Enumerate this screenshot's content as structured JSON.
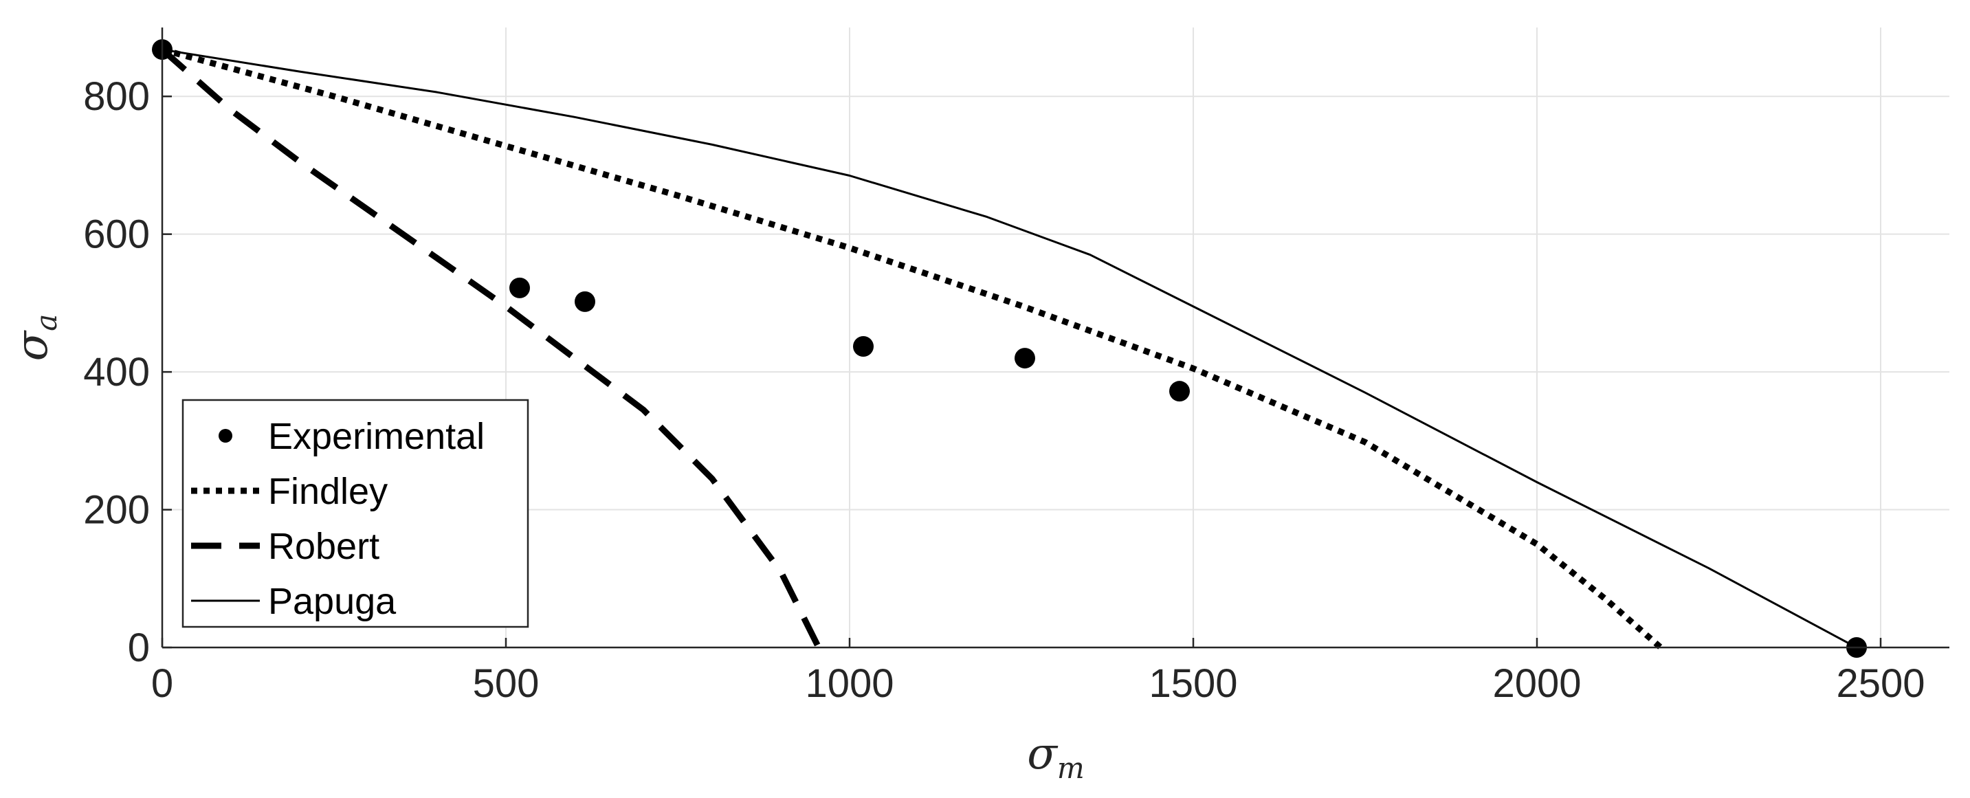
{
  "chart_data": {
    "type": "line",
    "xlabel": "σ",
    "xlabel_sub": "m",
    "ylabel": "σ",
    "ylabel_sub": "a",
    "xlim": [
      0,
      2600
    ],
    "ylim": [
      0,
      900
    ],
    "xticks": [
      0,
      500,
      1000,
      1500,
      2000,
      2500
    ],
    "yticks": [
      0,
      200,
      400,
      600,
      800
    ],
    "grid": true,
    "legend_position": "bottom-left",
    "series": [
      {
        "name": "Experimental",
        "style": "markers",
        "x": [
          0,
          520,
          615,
          1020,
          1255,
          1480,
          2465
        ],
        "y": [
          868,
          522,
          502,
          437,
          420,
          372,
          0
        ]
      },
      {
        "name": "Findley",
        "style": "dotted",
        "x": [
          0,
          250,
          500,
          750,
          1000,
          1250,
          1500,
          1750,
          2000,
          2100,
          2180
        ],
        "y": [
          868,
          800,
          728,
          656,
          580,
          496,
          405,
          298,
          150,
          70,
          0
        ]
      },
      {
        "name": "Robert",
        "style": "dashed",
        "x": [
          0,
          100,
          200,
          300,
          400,
          500,
          600,
          700,
          800,
          900,
          955
        ],
        "y": [
          868,
          780,
          705,
          635,
          565,
          495,
          420,
          345,
          245,
          110,
          0
        ]
      },
      {
        "name": "Papuga",
        "style": "solid",
        "x": [
          0,
          200,
          400,
          600,
          800,
          1000,
          1200,
          1350,
          1500,
          1750,
          2000,
          2250,
          2465
        ],
        "y": [
          868,
          836,
          806,
          770,
          730,
          685,
          625,
          570,
          495,
          370,
          240,
          115,
          0
        ]
      }
    ]
  }
}
